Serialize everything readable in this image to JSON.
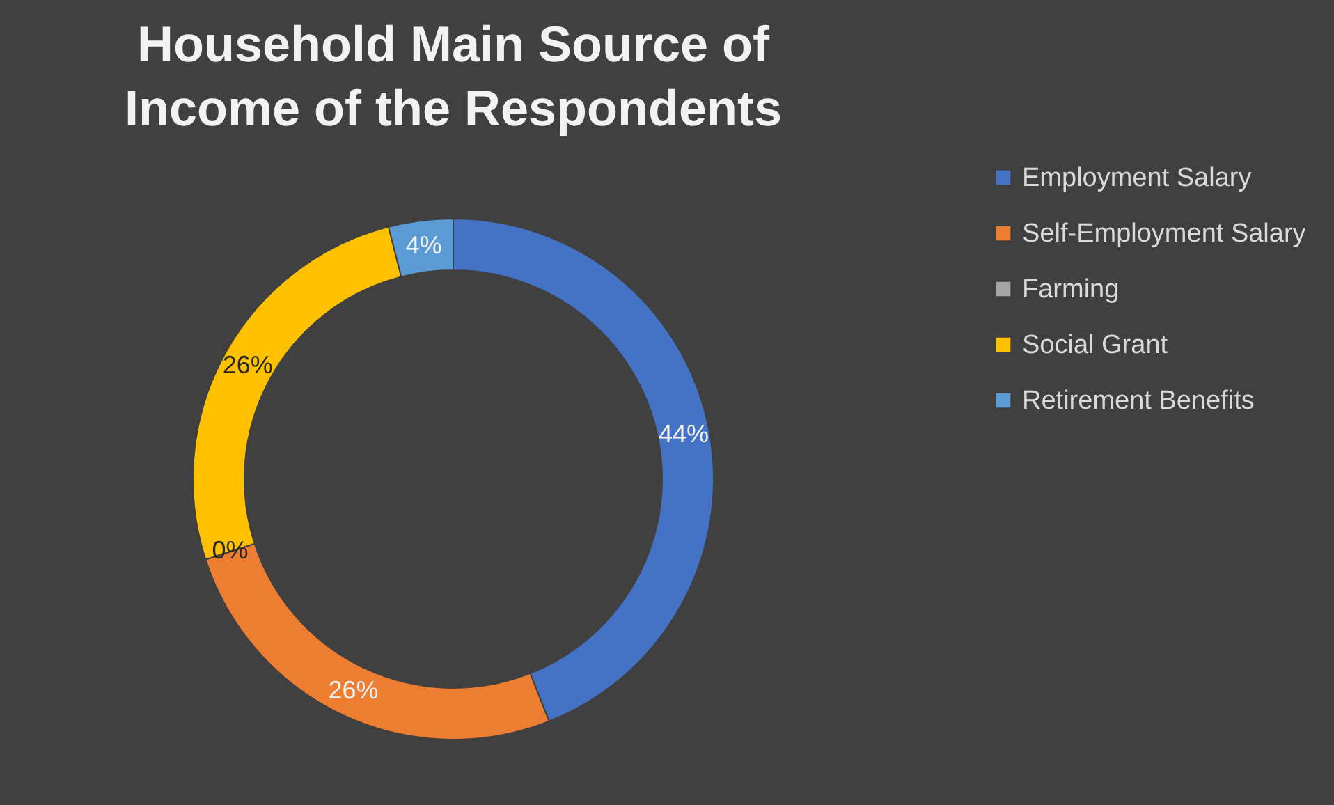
{
  "chart_data": {
    "type": "donut",
    "title": "Household Main Source of Income of the Respondents",
    "categories": [
      "Employment Salary",
      "Self-Employment Salary",
      "Farming",
      "Social Grant",
      "Retirement Benefits"
    ],
    "values": [
      44,
      26,
      0,
      26,
      4
    ],
    "colors": [
      "#4472c4",
      "#ed7d31",
      "#a5a5a5",
      "#ffc000",
      "#5b9bd5"
    ],
    "value_labels": [
      "44%",
      "26%",
      "0%",
      "26%",
      "4%"
    ],
    "legend": "right"
  }
}
